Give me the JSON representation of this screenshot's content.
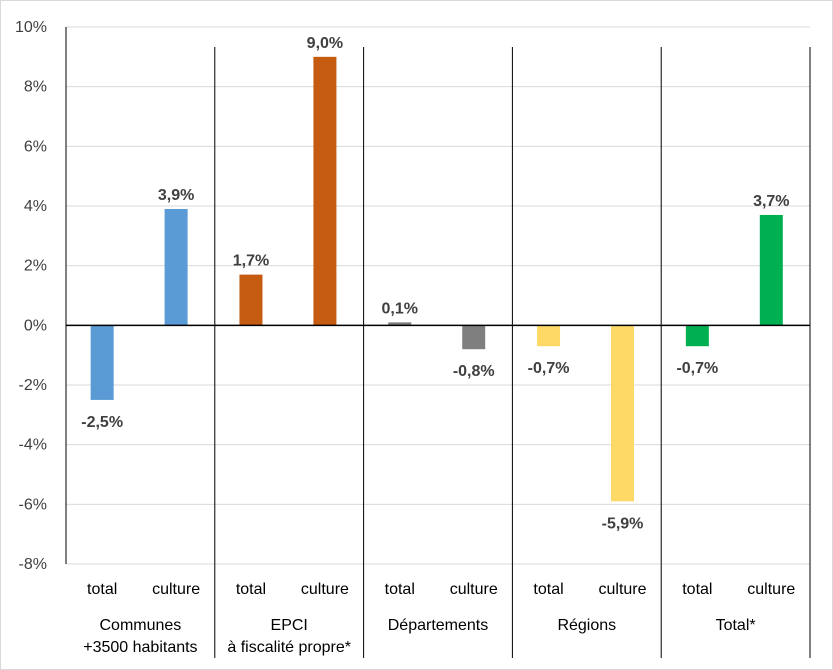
{
  "chart_data": {
    "type": "bar",
    "ylim": [
      -8,
      10
    ],
    "y_ticks": [
      "-8%",
      "-6%",
      "-4%",
      "-2%",
      "0%",
      "2%",
      "4%",
      "6%",
      "8%",
      "10%"
    ],
    "sub_labels": [
      "total",
      "culture"
    ],
    "groups": [
      {
        "name_lines": [
          "Communes",
          "+3500 habitants"
        ],
        "bars": [
          {
            "sub": "total",
            "value": -2.5,
            "label": "-2,5%",
            "color": "#5b9bd5"
          },
          {
            "sub": "culture",
            "value": 3.9,
            "label": "3,9%",
            "color": "#5b9bd5"
          }
        ]
      },
      {
        "name_lines": [
          "EPCI",
          "à fiscalité propre*"
        ],
        "bars": [
          {
            "sub": "total",
            "value": 1.7,
            "label": "1,7%",
            "color": "#c55a11"
          },
          {
            "sub": "culture",
            "value": 9.0,
            "label": "9,0%",
            "color": "#c55a11"
          }
        ]
      },
      {
        "name_lines": [
          "Départements"
        ],
        "bars": [
          {
            "sub": "total",
            "value": 0.1,
            "label": "0,1%",
            "color": "#7f7f7f"
          },
          {
            "sub": "culture",
            "value": -0.8,
            "label": "-0,8%",
            "color": "#7f7f7f"
          }
        ]
      },
      {
        "name_lines": [
          "Régions"
        ],
        "bars": [
          {
            "sub": "total",
            "value": -0.7,
            "label": "-0,7%",
            "color": "#ffd966"
          },
          {
            "sub": "culture",
            "value": -5.9,
            "label": "-5,9%",
            "color": "#ffd966"
          }
        ]
      },
      {
        "name_lines": [
          "Total*"
        ],
        "bars": [
          {
            "sub": "total",
            "value": -0.7,
            "label": "-0,7%",
            "color": "#00b050"
          },
          {
            "sub": "culture",
            "value": 3.7,
            "label": "3,7%",
            "color": "#00b050"
          }
        ]
      }
    ],
    "grid": true,
    "legend": "none"
  }
}
